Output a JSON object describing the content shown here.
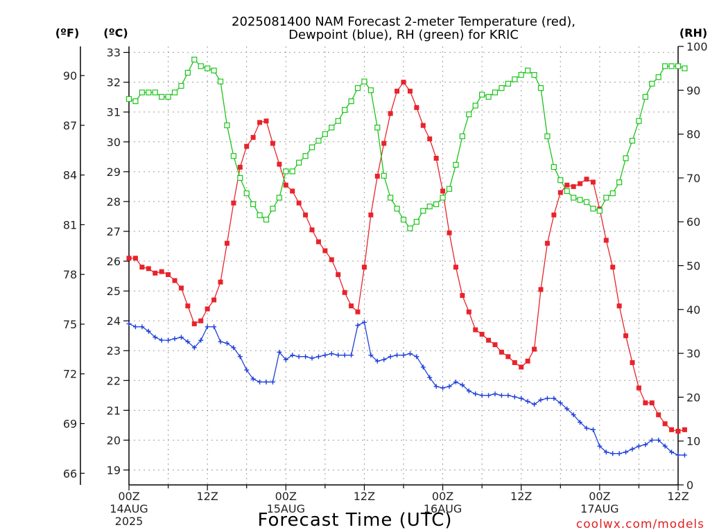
{
  "title_line1": "2025081400 NAM Forecast 2-meter Temperature (red),",
  "title_line2": "Dewpoint (blue), RH (green) for KRIC",
  "unit_f": "(ºF)",
  "unit_c": "(ºC)",
  "unit_rh": "(RH)",
  "xlabel": "Forecast Time (UTC)",
  "credit": "coolwx.com/models",
  "colors": {
    "temperature": "#e8232b",
    "dewpoint": "#1e3fd9",
    "rh": "#19c419",
    "grid": "#9a9a9a"
  },
  "chart_data": {
    "type": "line",
    "x_unit": "forecast hour from 2025-08-14 00Z",
    "x_range": [
      0,
      84
    ],
    "y_left_celsius_range": [
      18.5,
      33.2
    ],
    "y_right_rh_range": [
      0,
      100
    ],
    "grid": true,
    "x_ticks": [
      {
        "hour": 0,
        "lines": [
          "00Z",
          "14AUG",
          "2025"
        ]
      },
      {
        "hour": 12,
        "lines": [
          "12Z"
        ]
      },
      {
        "hour": 24,
        "lines": [
          "00Z",
          "15AUG"
        ]
      },
      {
        "hour": 36,
        "lines": [
          "12Z"
        ]
      },
      {
        "hour": 48,
        "lines": [
          "00Z",
          "16AUG"
        ]
      },
      {
        "hour": 60,
        "lines": [
          "12Z"
        ]
      },
      {
        "hour": 72,
        "lines": [
          "00Z",
          "17AUG"
        ]
      },
      {
        "hour": 84,
        "lines": [
          "12Z"
        ]
      }
    ],
    "celsius_ticks": [
      "19",
      "20",
      "21",
      "22",
      "23",
      "24",
      "25",
      "26",
      "27",
      "28",
      "29",
      "30",
      "31",
      "32",
      "33"
    ],
    "fahrenheit_ticks": [
      "66",
      "69",
      "72",
      "75",
      "78",
      "81",
      "84",
      "87",
      "90"
    ],
    "rh_ticks": [
      "0",
      "10",
      "20",
      "30",
      "40",
      "50",
      "60",
      "70",
      "80",
      "90",
      "100"
    ],
    "series": [
      {
        "key": "temperature",
        "unit": "C",
        "marker": "filled-square",
        "values": [
          26.1,
          26.1,
          25.8,
          25.75,
          25.6,
          25.65,
          25.55,
          25.35,
          25.1,
          24.5,
          23.9,
          24.0,
          24.4,
          24.7,
          25.3,
          26.6,
          27.95,
          29.15,
          29.85,
          30.15,
          30.65,
          30.7,
          29.95,
          29.25,
          28.55,
          28.35,
          27.95,
          27.55,
          27.05,
          26.65,
          26.35,
          26.05,
          25.55,
          24.95,
          24.5,
          24.3,
          25.8,
          27.55,
          28.85,
          29.95,
          30.95,
          31.7,
          32.0,
          31.7,
          31.15,
          30.55,
          30.1,
          29.45,
          28.35,
          26.95,
          25.8,
          24.85,
          24.3,
          23.7,
          23.55,
          23.35,
          23.2,
          22.95,
          22.8,
          22.6,
          22.45,
          22.65,
          23.05,
          25.05,
          26.6,
          27.55,
          28.3,
          28.55,
          28.5,
          28.6,
          28.75,
          28.65,
          27.75,
          26.7,
          25.8,
          24.5,
          23.5,
          22.6,
          21.75,
          21.25,
          21.25,
          20.85,
          20.55,
          20.35,
          20.3,
          20.35
        ]
      },
      {
        "key": "dewpoint",
        "unit": "C",
        "marker": "plus",
        "values": [
          23.9,
          23.8,
          23.8,
          23.65,
          23.45,
          23.35,
          23.35,
          23.4,
          23.45,
          23.3,
          23.1,
          23.35,
          23.8,
          23.8,
          23.3,
          23.25,
          23.1,
          22.8,
          22.35,
          22.05,
          21.95,
          21.95,
          21.95,
          22.95,
          22.7,
          22.85,
          22.8,
          22.8,
          22.75,
          22.8,
          22.85,
          22.9,
          22.85,
          22.85,
          22.85,
          23.85,
          23.95,
          22.85,
          22.65,
          22.7,
          22.8,
          22.85,
          22.85,
          22.9,
          22.8,
          22.45,
          22.1,
          21.8,
          21.75,
          21.8,
          21.95,
          21.85,
          21.65,
          21.55,
          21.5,
          21.5,
          21.55,
          21.5,
          21.5,
          21.45,
          21.4,
          21.3,
          21.2,
          21.35,
          21.4,
          21.4,
          21.25,
          21.05,
          20.85,
          20.6,
          20.4,
          20.35,
          19.8,
          19.6,
          19.55,
          19.55,
          19.6,
          19.7,
          19.8,
          19.85,
          20.0,
          20.0,
          19.8,
          19.6,
          19.5,
          19.5
        ]
      },
      {
        "key": "rh",
        "unit": "%",
        "marker": "open-square",
        "values": [
          88,
          87.5,
          89.5,
          89.5,
          89.5,
          88.5,
          88.5,
          89.5,
          91,
          94,
          97,
          95.5,
          95,
          94.5,
          92,
          82,
          75,
          70,
          66.5,
          64,
          61.5,
          60.5,
          63,
          65.5,
          71.5,
          71.5,
          73.5,
          75,
          77,
          78.5,
          80,
          81.5,
          83,
          85.5,
          87.5,
          90.5,
          92,
          90,
          81.5,
          70.5,
          65.5,
          63,
          60.5,
          58.5,
          60,
          62.5,
          63.5,
          64,
          65.5,
          67.5,
          73,
          79.5,
          84.5,
          86.5,
          89,
          88.5,
          89.5,
          90.5,
          91.5,
          92.5,
          93.5,
          94.5,
          93.5,
          90.5,
          79.5,
          72.5,
          69.5,
          67,
          65.5,
          65,
          64.5,
          63,
          62.5,
          65.5,
          66.5,
          69,
          74.5,
          78.5,
          83,
          88.5,
          91.5,
          93,
          95.5,
          95.5,
          95.5,
          95
        ]
      }
    ]
  }
}
